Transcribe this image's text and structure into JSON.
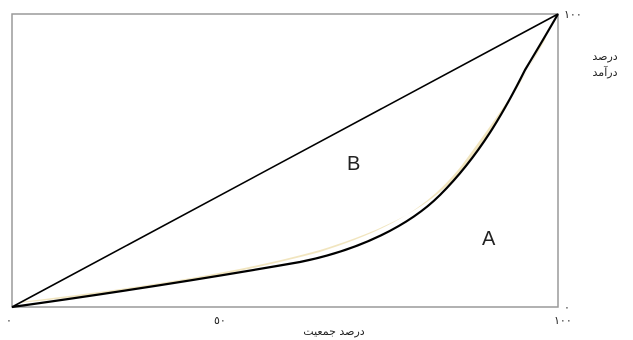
{
  "diagram": {
    "type": "lorenz-curve",
    "regions": {
      "upper": "B",
      "lower": "A"
    },
    "x_axis": {
      "label": "درصد جمعیت",
      "ticks": [
        "٠",
        "٥٠",
        "١٠٠"
      ]
    },
    "y_axis": {
      "label_line1": "درصد",
      "label_line2": "درآمد",
      "top_tick": "١٠٠",
      "bottom_tick": "٠"
    },
    "colors": {
      "frame": "#999999",
      "line": "#000000",
      "shading": "#d9c27a"
    }
  }
}
